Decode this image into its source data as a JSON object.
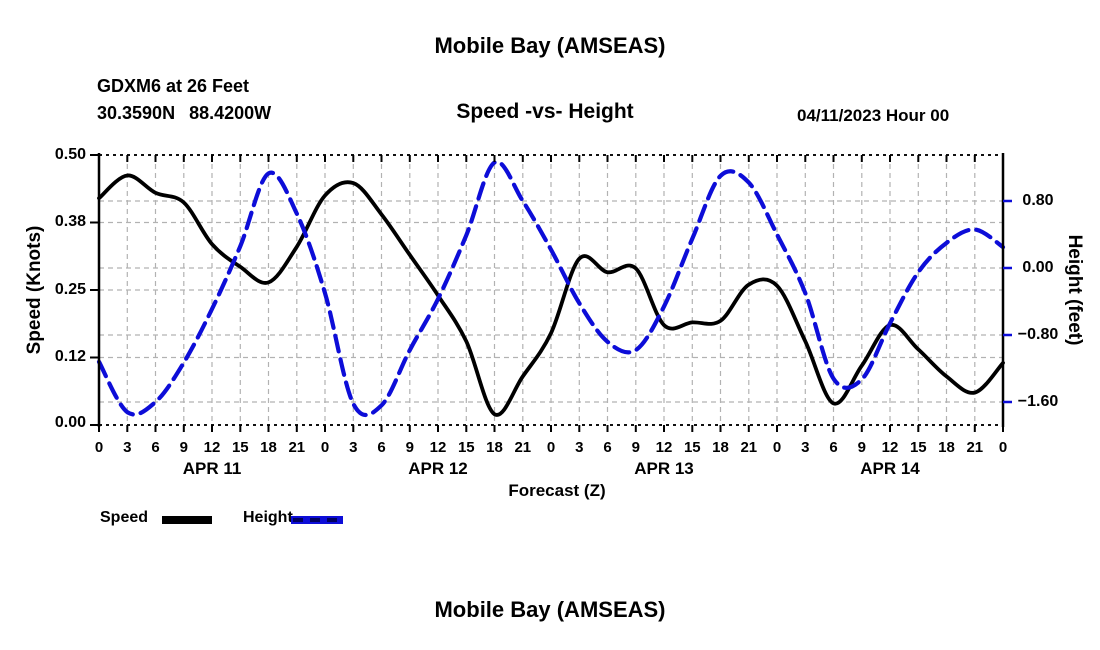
{
  "header": {
    "title": "Mobile Bay (AMSEAS)",
    "station": "GDXM6 at 26 Feet",
    "lat": "30.3590N",
    "lon": "88.4200W",
    "subtitle": "Speed -vs- Height",
    "run_date": "04/11/2023 Hour 00"
  },
  "footer": {
    "title": "Mobile Bay (AMSEAS)"
  },
  "legend": {
    "speed_label": "Speed",
    "height_label": "Height",
    "speed_color": "#000000",
    "height_color": "#0d0dd8"
  },
  "chart_data": {
    "type": "line",
    "title": "Mobile Bay (AMSEAS)",
    "subtitle": "Speed -vs- Height",
    "xlabel": "Forecast (Z)",
    "x_hours": [
      0,
      3,
      6,
      9,
      12,
      15,
      18,
      21,
      24,
      27,
      30,
      33,
      36,
      39,
      42,
      45,
      48,
      51,
      54,
      57,
      60,
      63,
      66,
      69,
      72,
      75,
      78,
      81,
      84,
      87,
      90,
      93,
      96
    ],
    "x_axis": {
      "tick_labels": [
        "0",
        "3",
        "6",
        "9",
        "12",
        "15",
        "18",
        "21",
        "0",
        "3",
        "6",
        "9",
        "12",
        "15",
        "18",
        "21",
        "0",
        "3",
        "6",
        "9",
        "12",
        "15",
        "18",
        "21",
        "0",
        "3",
        "6",
        "9",
        "12",
        "15",
        "18",
        "21",
        "0"
      ],
      "day_labels": [
        "APR 11",
        "APR 12",
        "APR 13",
        "APR 14"
      ]
    },
    "left_axis": {
      "label": "Speed (Knots)",
      "ticks": [
        "0.50",
        "0.38",
        "0.25",
        "0.12",
        "0.00"
      ],
      "tick_values": [
        0.5,
        0.375,
        0.25,
        0.125,
        0.0
      ],
      "range": [
        0.0,
        0.5
      ],
      "grid_values": [
        0.375,
        0.25,
        0.125
      ]
    },
    "right_axis": {
      "label": "Height (feet)",
      "ticks": [
        "0.80",
        "0.00",
        "−0.80",
        "−1.60"
      ],
      "tick_values": [
        0.8,
        0.0,
        -0.8,
        -1.6
      ],
      "range": [
        -1.88,
        1.35
      ],
      "grid_values": [
        0.8,
        0.0,
        -0.8,
        -1.6
      ]
    },
    "grid": true,
    "legend_position": "bottom-left",
    "series": [
      {
        "name": "Speed",
        "axis": "left",
        "units": "knots",
        "color": "#000000",
        "style": "solid",
        "values": [
          0.42,
          0.462,
          0.43,
          0.412,
          0.335,
          0.293,
          0.264,
          0.33,
          0.425,
          0.448,
          0.39,
          0.315,
          0.24,
          0.155,
          0.02,
          0.09,
          0.17,
          0.308,
          0.283,
          0.29,
          0.185,
          0.19,
          0.193,
          0.26,
          0.258,
          0.155,
          0.04,
          0.11,
          0.185,
          0.14,
          0.09,
          0.06,
          0.115
        ]
      },
      {
        "name": "Height",
        "axis": "right",
        "units": "feet",
        "color": "#0d0dd8",
        "style": "dashed",
        "values": [
          -1.12,
          -1.72,
          -1.6,
          -1.13,
          -0.49,
          0.26,
          1.13,
          0.65,
          -0.3,
          -1.62,
          -1.64,
          -0.98,
          -0.37,
          0.39,
          1.26,
          0.8,
          0.22,
          -0.42,
          -0.88,
          -0.98,
          -0.46,
          0.35,
          1.1,
          1.02,
          0.4,
          -0.3,
          -1.32,
          -1.33,
          -0.66,
          -0.05,
          0.3,
          0.46,
          0.25
        ]
      }
    ]
  }
}
